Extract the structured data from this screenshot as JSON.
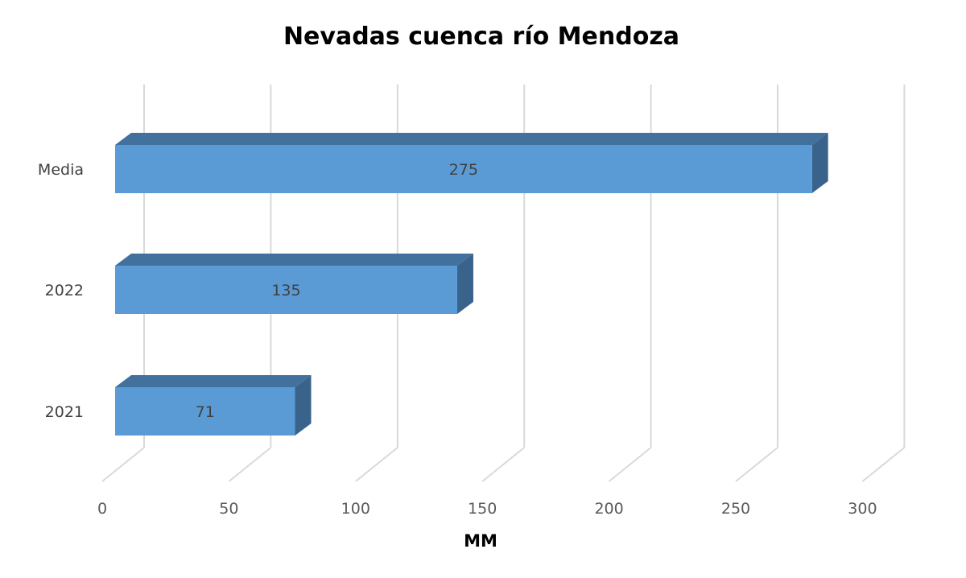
{
  "chart_data": {
    "type": "bar",
    "orientation": "horizontal",
    "style": "3d",
    "title": "Nevadas cuenca río Mendoza",
    "xlabel": "MM",
    "ylabel": "",
    "categories": [
      "Media",
      "2022",
      "2021"
    ],
    "values": [
      275,
      135,
      71
    ],
    "data_labels": [
      "275",
      "135",
      "71"
    ],
    "xlim": [
      0,
      300
    ],
    "x_ticks": [
      "0",
      "50",
      "100",
      "150",
      "200",
      "250",
      "300"
    ],
    "grid": true,
    "legend": "none",
    "colors": {
      "bar_front": "#5b9bd5",
      "bar_top": "#41719c",
      "bar_side": "#3a638c"
    }
  }
}
